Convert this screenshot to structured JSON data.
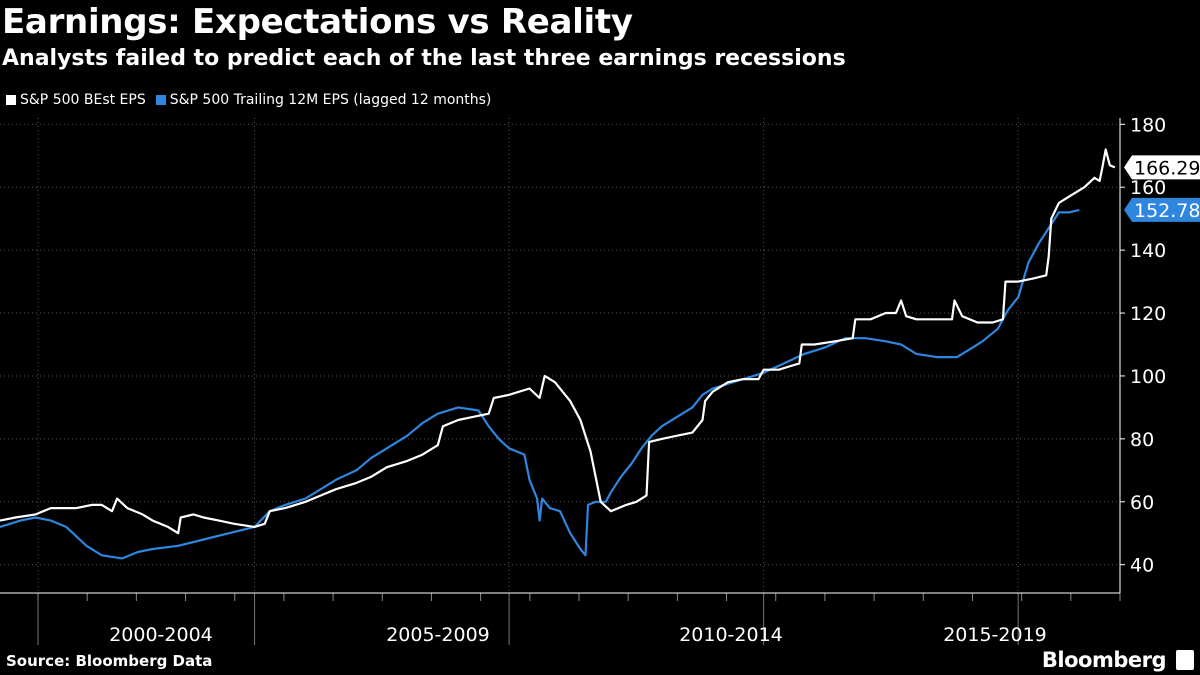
{
  "title": "Earnings: Expectations vs Reality",
  "subtitle": "Analysts failed to predict each of the last three earnings recessions",
  "legend": [
    {
      "label": "S&P 500 BEst EPS",
      "color": "#ffffff"
    },
    {
      "label": "S&P 500 Trailing 12M EPS (lagged 12 months)",
      "color": "#2e86de"
    }
  ],
  "source": "Source: Bloomberg Data",
  "brand": "Bloomberg",
  "chart_data": {
    "type": "line",
    "title": "Earnings: Expectations vs Reality",
    "xlim": [
      1998.0,
      2020.0
    ],
    "ylim": [
      31,
      182
    ],
    "y_ticks": [
      40,
      60,
      80,
      100,
      120,
      140,
      160,
      180
    ],
    "period_labels": [
      {
        "label": "2000-2004",
        "center": 2000.5
      },
      {
        "label": "2005-2009",
        "center": 2005.5
      },
      {
        "label": "2010-2014",
        "center": 2010.5
      },
      {
        "label": "2015-2019",
        "center": 2015.5
      }
    ],
    "period_dividers": [
      1998.0,
      2003.0,
      2008.0,
      2013.0,
      2018.0
    ],
    "series": [
      {
        "name": "S&P 500 BEst EPS",
        "color": "#ffffff",
        "last_value": "166.29",
        "points": [
          [
            1998.0,
            54
          ],
          [
            1998.3,
            55
          ],
          [
            1998.7,
            56
          ],
          [
            1999.0,
            58
          ],
          [
            1999.5,
            58
          ],
          [
            1999.8,
            59
          ],
          [
            2000.0,
            59
          ],
          [
            2000.2,
            57
          ],
          [
            2000.3,
            61
          ],
          [
            2000.5,
            58
          ],
          [
            2000.8,
            56
          ],
          [
            2001.0,
            54
          ],
          [
            2001.3,
            52
          ],
          [
            2001.5,
            50
          ],
          [
            2001.55,
            55
          ],
          [
            2001.8,
            56
          ],
          [
            2002.0,
            55
          ],
          [
            2002.3,
            54
          ],
          [
            2002.6,
            53
          ],
          [
            2003.0,
            52
          ],
          [
            2003.2,
            53
          ],
          [
            2003.3,
            57
          ],
          [
            2003.6,
            58
          ],
          [
            2004.0,
            60
          ],
          [
            2004.3,
            62
          ],
          [
            2004.6,
            64
          ],
          [
            2005.0,
            66
          ],
          [
            2005.3,
            68
          ],
          [
            2005.6,
            71
          ],
          [
            2006.0,
            73
          ],
          [
            2006.3,
            75
          ],
          [
            2006.6,
            78
          ],
          [
            2006.7,
            84
          ],
          [
            2007.0,
            86
          ],
          [
            2007.3,
            87
          ],
          [
            2007.6,
            88
          ],
          [
            2007.7,
            93
          ],
          [
            2008.0,
            94
          ],
          [
            2008.4,
            96
          ],
          [
            2008.6,
            93
          ],
          [
            2008.7,
            100
          ],
          [
            2008.9,
            98
          ],
          [
            2009.2,
            92
          ],
          [
            2009.4,
            86
          ],
          [
            2009.6,
            76
          ],
          [
            2009.7,
            68
          ],
          [
            2009.8,
            60
          ],
          [
            2010.0,
            57
          ],
          [
            2010.3,
            59
          ],
          [
            2010.5,
            60
          ],
          [
            2010.7,
            62
          ],
          [
            2010.75,
            79
          ],
          [
            2011.0,
            80
          ],
          [
            2011.3,
            81
          ],
          [
            2011.6,
            82
          ],
          [
            2011.8,
            86
          ],
          [
            2011.85,
            92
          ],
          [
            2012.0,
            95
          ],
          [
            2012.3,
            98
          ],
          [
            2012.6,
            99
          ],
          [
            2012.9,
            99
          ],
          [
            2013.0,
            102
          ],
          [
            2013.3,
            102
          ],
          [
            2013.5,
            103
          ],
          [
            2013.7,
            104
          ],
          [
            2013.75,
            110
          ],
          [
            2014.0,
            110
          ],
          [
            2014.4,
            111
          ],
          [
            2014.75,
            112
          ],
          [
            2014.8,
            118
          ],
          [
            2015.1,
            118
          ],
          [
            2015.4,
            120
          ],
          [
            2015.6,
            120
          ],
          [
            2015.7,
            124
          ],
          [
            2015.8,
            119
          ],
          [
            2016.0,
            118
          ],
          [
            2016.4,
            118
          ],
          [
            2016.7,
            118
          ],
          [
            2016.75,
            124
          ],
          [
            2016.9,
            119
          ],
          [
            2017.2,
            117
          ],
          [
            2017.5,
            117
          ],
          [
            2017.7,
            118
          ],
          [
            2017.75,
            130
          ],
          [
            2018.0,
            130
          ],
          [
            2018.3,
            131
          ],
          [
            2018.55,
            132
          ],
          [
            2018.6,
            138
          ],
          [
            2018.65,
            150
          ],
          [
            2018.8,
            155
          ],
          [
            2019.0,
            157
          ],
          [
            2019.3,
            160
          ],
          [
            2019.5,
            163
          ],
          [
            2019.6,
            162
          ],
          [
            2019.65,
            166
          ],
          [
            2019.72,
            172
          ],
          [
            2019.8,
            167
          ],
          [
            2019.9,
            166.29
          ]
        ]
      },
      {
        "name": "S&P 500 Trailing 12M EPS (lagged 12 months)",
        "color": "#2e86de",
        "last_value": "152.78",
        "points": [
          [
            1998.0,
            52
          ],
          [
            1998.4,
            54
          ],
          [
            1998.7,
            55
          ],
          [
            1999.0,
            54
          ],
          [
            1999.3,
            52
          ],
          [
            1999.7,
            46
          ],
          [
            2000.0,
            43
          ],
          [
            2000.4,
            42
          ],
          [
            2000.7,
            44
          ],
          [
            2001.0,
            45
          ],
          [
            2001.5,
            46
          ],
          [
            2002.0,
            48
          ],
          [
            2002.5,
            50
          ],
          [
            2003.0,
            52
          ],
          [
            2003.3,
            57
          ],
          [
            2003.6,
            59
          ],
          [
            2004.0,
            61
          ],
          [
            2004.3,
            64
          ],
          [
            2004.6,
            67
          ],
          [
            2005.0,
            70
          ],
          [
            2005.3,
            74
          ],
          [
            2005.6,
            77
          ],
          [
            2006.0,
            81
          ],
          [
            2006.3,
            85
          ],
          [
            2006.6,
            88
          ],
          [
            2007.0,
            90
          ],
          [
            2007.4,
            89
          ],
          [
            2007.6,
            84
          ],
          [
            2007.8,
            80
          ],
          [
            2008.0,
            77
          ],
          [
            2008.3,
            75
          ],
          [
            2008.4,
            67
          ],
          [
            2008.55,
            61
          ],
          [
            2008.6,
            54
          ],
          [
            2008.65,
            61
          ],
          [
            2008.8,
            58
          ],
          [
            2009.0,
            57
          ],
          [
            2009.2,
            50
          ],
          [
            2009.4,
            45
          ],
          [
            2009.5,
            43
          ],
          [
            2009.55,
            59
          ],
          [
            2009.7,
            60
          ],
          [
            2009.9,
            60
          ],
          [
            2010.0,
            63
          ],
          [
            2010.2,
            68
          ],
          [
            2010.4,
            72
          ],
          [
            2010.6,
            77
          ],
          [
            2010.8,
            81
          ],
          [
            2011.0,
            84
          ],
          [
            2011.3,
            87
          ],
          [
            2011.6,
            90
          ],
          [
            2011.8,
            94
          ],
          [
            2012.0,
            96
          ],
          [
            2012.4,
            98
          ],
          [
            2012.8,
            100
          ],
          [
            2013.0,
            101
          ],
          [
            2013.4,
            104
          ],
          [
            2013.8,
            107
          ],
          [
            2014.2,
            109
          ],
          [
            2014.6,
            112
          ],
          [
            2015.0,
            112
          ],
          [
            2015.4,
            111
          ],
          [
            2015.7,
            110
          ],
          [
            2016.0,
            107
          ],
          [
            2016.4,
            106
          ],
          [
            2016.8,
            106
          ],
          [
            2017.0,
            108
          ],
          [
            2017.3,
            111
          ],
          [
            2017.6,
            115
          ],
          [
            2017.8,
            121
          ],
          [
            2018.0,
            125
          ],
          [
            2018.2,
            136
          ],
          [
            2018.4,
            142
          ],
          [
            2018.6,
            147
          ],
          [
            2018.8,
            152
          ],
          [
            2019.0,
            152
          ],
          [
            2019.2,
            152.78
          ]
        ]
      }
    ]
  }
}
